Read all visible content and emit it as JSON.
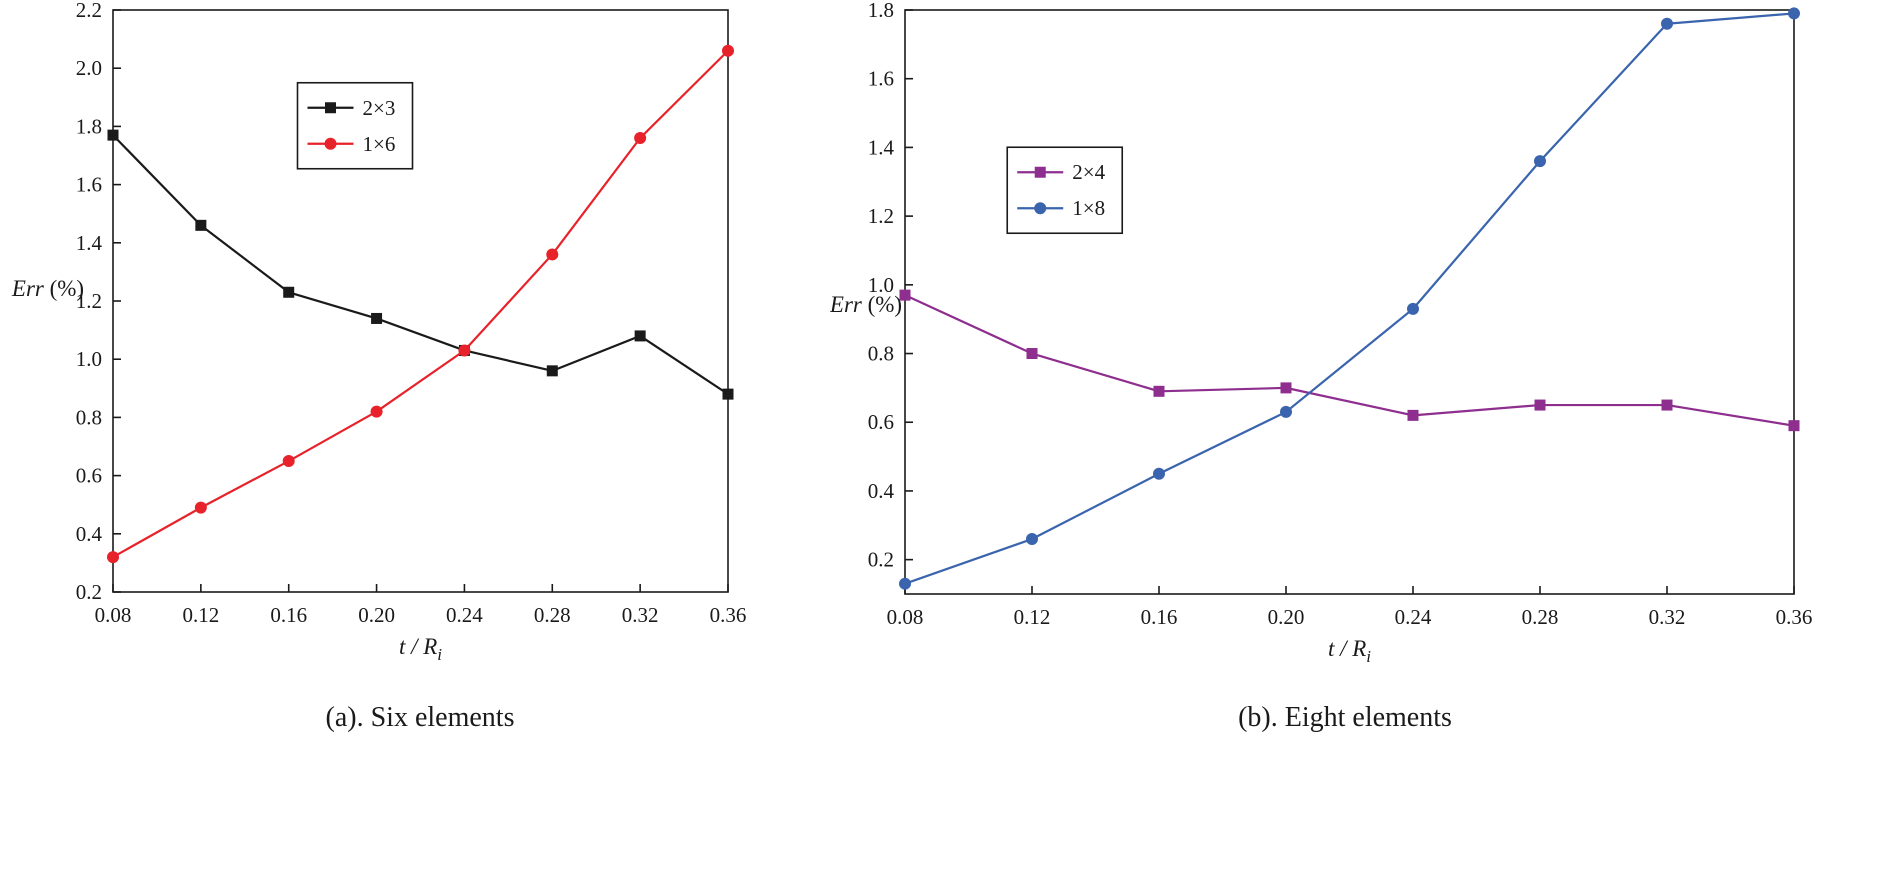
{
  "page": {
    "background": "#ffffff"
  },
  "chart_data": [
    {
      "type": "line",
      "caption": "(a). Six elements",
      "xlabel": "t / R_i",
      "ylabel": "Err (%)",
      "x": [
        0.08,
        0.12,
        0.16,
        0.2,
        0.24,
        0.28,
        0.32,
        0.36
      ],
      "xlim": [
        0.08,
        0.36
      ],
      "ylim": [
        0.2,
        2.2
      ],
      "x_ticks": [
        0.08,
        0.12,
        0.16,
        0.2,
        0.24,
        0.28,
        0.32,
        0.36
      ],
      "y_ticks": [
        0.2,
        0.4,
        0.6,
        0.8,
        1.0,
        1.2,
        1.4,
        1.6,
        1.8,
        2.0,
        2.2
      ],
      "grid": false,
      "legend": {
        "position": "inner-upper-left",
        "x": 0.3,
        "y": 0.125
      },
      "series": [
        {
          "name": "2×3",
          "marker": "square",
          "color": "#1a1a1a",
          "values": [
            1.77,
            1.46,
            1.23,
            1.14,
            1.03,
            0.96,
            1.08,
            0.88
          ]
        },
        {
          "name": "1×6",
          "marker": "circle",
          "color": "#e8222a",
          "values": [
            0.32,
            0.49,
            0.65,
            0.82,
            1.03,
            1.36,
            1.76,
            2.06
          ]
        }
      ]
    },
    {
      "type": "line",
      "caption": "(b). Eight elements",
      "xlabel": "t / R_i",
      "ylabel": "Err (%)",
      "x": [
        0.08,
        0.12,
        0.16,
        0.2,
        0.24,
        0.28,
        0.32,
        0.36
      ],
      "xlim": [
        0.08,
        0.36
      ],
      "ylim": [
        0.1,
        1.8
      ],
      "x_ticks": [
        0.08,
        0.12,
        0.16,
        0.2,
        0.24,
        0.28,
        0.32,
        0.36
      ],
      "y_ticks": [
        0.2,
        0.4,
        0.6,
        0.8,
        1.0,
        1.2,
        1.4,
        1.6,
        1.8
      ],
      "grid": false,
      "legend": {
        "position": "inner-upper-left",
        "x": 0.115,
        "y": 0.235
      },
      "series": [
        {
          "name": "2×4",
          "marker": "square",
          "color": "#8e2e8e",
          "values": [
            0.97,
            0.8,
            0.69,
            0.7,
            0.62,
            0.65,
            0.65,
            0.59
          ]
        },
        {
          "name": "1×8",
          "marker": "circle",
          "color": "#3a64ad",
          "values": [
            0.13,
            0.26,
            0.45,
            0.63,
            0.93,
            1.36,
            1.76,
            1.79
          ]
        }
      ]
    }
  ]
}
